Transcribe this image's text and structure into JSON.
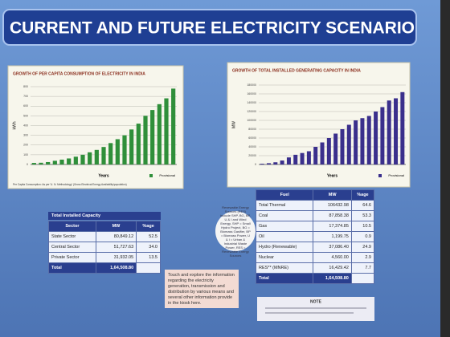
{
  "header": {
    "title": "CURRENT AND FUTURE ELECTRICITY SCENARIO"
  },
  "chart_data": [
    {
      "type": "bar",
      "title": "GROWTH OF PER CAPITA CONSUMPTION OF ELECTRICITY IN INDIA",
      "x_label": "Years",
      "y_label": "kWh",
      "color": "#2f8f3a",
      "categories": [
        null,
        null,
        null,
        null,
        null,
        null,
        null,
        null,
        null,
        null,
        null,
        null,
        null,
        null,
        null,
        null,
        null,
        null,
        null,
        null,
        null
      ],
      "values": [
        16,
        18,
        25,
        38,
        50,
        62,
        80,
        100,
        125,
        150,
        180,
        220,
        260,
        300,
        360,
        420,
        500,
        560,
        620,
        680,
        780
      ],
      "ylim": [
        0,
        800
      ],
      "yticks": [
        0,
        100,
        200,
        300,
        400,
        500,
        600,
        700,
        800
      ],
      "grid": true,
      "legend": "Provisional",
      "footnote": "Per Capita Consumption: As per 'U. N. Methodology' (Gross Electrical Energy Availability/population)"
    },
    {
      "type": "bar",
      "title": "GROWTH OF TOTAL INSTALLED GENERATING CAPACITY IN INDIA",
      "x_label": "Years",
      "y_label": "MW",
      "color": "#3a2f8c",
      "categories": [
        null,
        null,
        null,
        null,
        null,
        null,
        null,
        null,
        null,
        null,
        null,
        null,
        null,
        null,
        null,
        null,
        null,
        null,
        null,
        null,
        null,
        null
      ],
      "values": [
        1700,
        2900,
        5000,
        9000,
        16000,
        22000,
        26000,
        30000,
        40000,
        50000,
        60000,
        70000,
        80000,
        90000,
        100000,
        105000,
        110000,
        120000,
        130000,
        145000,
        150000,
        164000
      ],
      "ylim": [
        0,
        180000
      ],
      "yticks": [
        0,
        20000,
        40000,
        60000,
        80000,
        100000,
        120000,
        140000,
        160000,
        180000
      ],
      "grid": true,
      "legend": "Provisional"
    }
  ],
  "sector_table": {
    "caption": "Total Installed Capacity",
    "header": [
      "Sector",
      "MW",
      "%age"
    ],
    "rows": [
      [
        "State Sector",
        "80,849.12",
        "52.5"
      ],
      [
        "Central Sector",
        "51,727.63",
        "34.0"
      ],
      [
        "Private Sector",
        "31,932.05",
        "13.5"
      ],
      [
        "Total",
        "1,64,508.80",
        ""
      ]
    ]
  },
  "fuel_table": {
    "header": [
      "Fuel",
      "MW",
      "%age"
    ],
    "rows": [
      [
        "Total Thermal",
        "106432.98",
        "64.6"
      ],
      [
        "Coal",
        "87,858.38",
        "53.3"
      ],
      [
        "Gas",
        "17,374.85",
        "10.5"
      ],
      [
        "Oil",
        "1,199.75",
        "0.9"
      ],
      [
        "Hydro (Renewable)",
        "37,086.40",
        "24.9"
      ],
      [
        "Nuclear",
        "4,560.00",
        "2.9"
      ],
      [
        "RES** (MNRE)",
        "16,429.42",
        "7.7"
      ],
      [
        "Total",
        "1,64,508.80",
        ""
      ]
    ]
  },
  "res_note": "Renewable Energy Sources (RES) include SHP, BG, BP, U & I and Wind Energy. SHP = Small Hydro Project, BG = Biomass Gasifier, BP = Biomass Power, U & I = Urban & Industrial Waste Power, RES = Renewable Energy Sources",
  "kiosk_note": "Touch and explore the information regarding the electricity generation, transmission and distribution by various means and several other information provide in the kiosk here.",
  "footer_note": "NOTE"
}
